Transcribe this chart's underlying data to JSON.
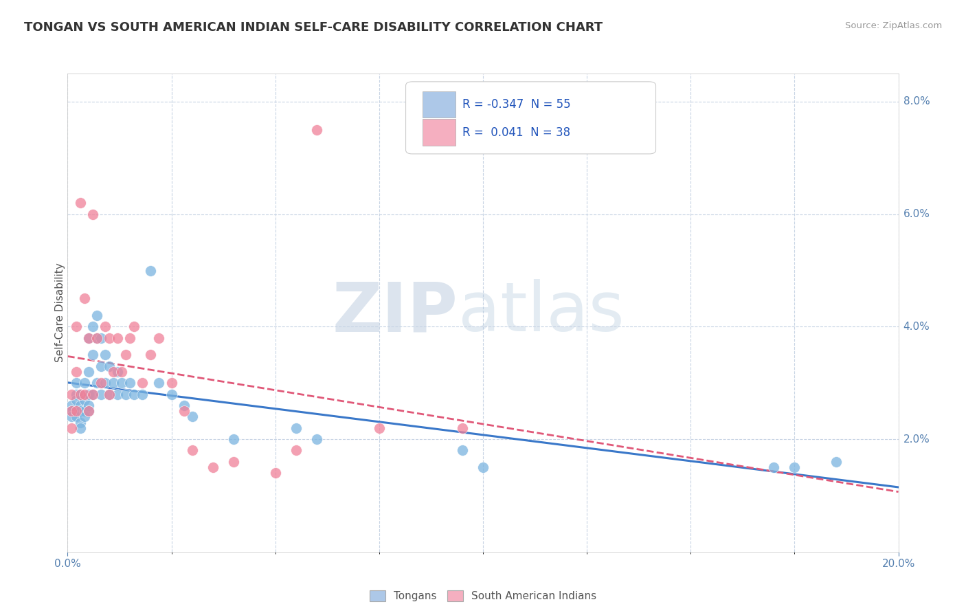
{
  "title": "TONGAN VS SOUTH AMERICAN INDIAN SELF-CARE DISABILITY CORRELATION CHART",
  "source": "Source: ZipAtlas.com",
  "ylabel": "Self-Care Disability",
  "legend_entries": [
    {
      "label": "Tongans",
      "R": "-0.347",
      "N": "55",
      "color": "#adc8e8"
    },
    {
      "label": "South American Indians",
      "R": "0.041",
      "N": "38",
      "color": "#f5afc0"
    }
  ],
  "tongan_color": "#7ab4e0",
  "south_american_color": "#f08098",
  "tongan_line_color": "#3a78c9",
  "south_american_line_color": "#e05878",
  "xmin": 0.0,
  "xmax": 0.2,
  "ymin": 0.0,
  "ymax": 0.085,
  "ytick_right_vals": [
    0.02,
    0.04,
    0.06,
    0.08
  ],
  "ytick_right_labels": [
    "2.0%",
    "4.0%",
    "6.0%",
    "8.0%"
  ],
  "background_color": "#ffffff",
  "grid_color": "#c8d4e4",
  "watermark_zip": "ZIP",
  "watermark_atlas": "atlas",
  "tongan_x": [
    0.001,
    0.001,
    0.001,
    0.002,
    0.002,
    0.002,
    0.002,
    0.003,
    0.003,
    0.003,
    0.003,
    0.003,
    0.004,
    0.004,
    0.004,
    0.004,
    0.005,
    0.005,
    0.005,
    0.005,
    0.005,
    0.006,
    0.006,
    0.006,
    0.007,
    0.007,
    0.007,
    0.008,
    0.008,
    0.008,
    0.009,
    0.009,
    0.01,
    0.01,
    0.011,
    0.012,
    0.012,
    0.013,
    0.014,
    0.015,
    0.016,
    0.018,
    0.02,
    0.022,
    0.025,
    0.028,
    0.03,
    0.04,
    0.055,
    0.06,
    0.095,
    0.1,
    0.17,
    0.175,
    0.185
  ],
  "tongan_y": [
    0.026,
    0.025,
    0.024,
    0.03,
    0.028,
    0.027,
    0.024,
    0.028,
    0.026,
    0.025,
    0.023,
    0.022,
    0.03,
    0.027,
    0.025,
    0.024,
    0.038,
    0.032,
    0.028,
    0.026,
    0.025,
    0.04,
    0.035,
    0.028,
    0.042,
    0.038,
    0.03,
    0.038,
    0.033,
    0.028,
    0.035,
    0.03,
    0.033,
    0.028,
    0.03,
    0.032,
    0.028,
    0.03,
    0.028,
    0.03,
    0.028,
    0.028,
    0.05,
    0.03,
    0.028,
    0.026,
    0.024,
    0.02,
    0.022,
    0.02,
    0.018,
    0.015,
    0.015,
    0.015,
    0.016
  ],
  "south_american_x": [
    0.001,
    0.001,
    0.001,
    0.002,
    0.002,
    0.002,
    0.003,
    0.003,
    0.004,
    0.004,
    0.005,
    0.005,
    0.006,
    0.006,
    0.007,
    0.008,
    0.009,
    0.01,
    0.01,
    0.011,
    0.012,
    0.013,
    0.014,
    0.015,
    0.016,
    0.018,
    0.02,
    0.022,
    0.025,
    0.028,
    0.03,
    0.035,
    0.04,
    0.05,
    0.055,
    0.06,
    0.075,
    0.095
  ],
  "south_american_y": [
    0.028,
    0.025,
    0.022,
    0.04,
    0.032,
    0.025,
    0.062,
    0.028,
    0.045,
    0.028,
    0.038,
    0.025,
    0.06,
    0.028,
    0.038,
    0.03,
    0.04,
    0.038,
    0.028,
    0.032,
    0.038,
    0.032,
    0.035,
    0.038,
    0.04,
    0.03,
    0.035,
    0.038,
    0.03,
    0.025,
    0.018,
    0.015,
    0.016,
    0.014,
    0.018,
    0.075,
    0.022,
    0.022
  ]
}
